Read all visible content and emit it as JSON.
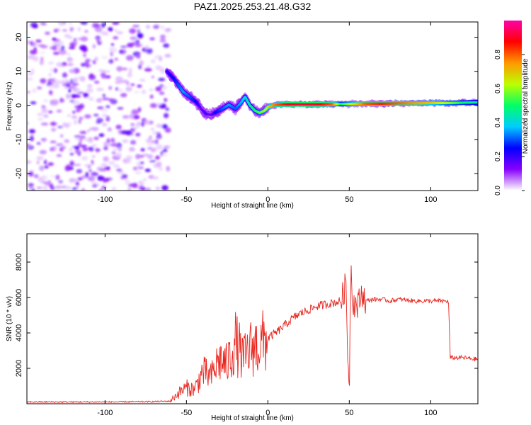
{
  "title": "PAZ1.2025.253.21.48.G32",
  "chart_data": [
    {
      "type": "heatmap",
      "name": "spectrogram",
      "xlabel": "Height of straight line (km)",
      "ylabel": "Frequency (Hz)",
      "xlim": [
        -148,
        129
      ],
      "ylim": [
        -25,
        24.5
      ],
      "xticks": [
        -100,
        -50,
        0,
        50,
        100
      ],
      "yticks": [
        20,
        10,
        0,
        -10,
        -20
      ],
      "xtick_labels": [
        "-100",
        "-50",
        "0",
        "50",
        "100"
      ],
      "ytick_labels": [
        "20",
        "10",
        "0",
        "-10",
        "-20"
      ],
      "noise_region_km": [
        -148,
        -61
      ],
      "ridge": {
        "x": [
          -62,
          -58,
          -55,
          -52,
          -48,
          -44,
          -41,
          -38,
          -35,
          -32,
          -28,
          -24,
          -20,
          -17,
          -14,
          -11,
          -8,
          -5,
          -2,
          0,
          3,
          6,
          10,
          15,
          20,
          30,
          40,
          45,
          50,
          55,
          60,
          70,
          80,
          90,
          100,
          110,
          120,
          129
        ],
        "freq": [
          10,
          8,
          6,
          4,
          2.5,
          1,
          -1,
          -2.5,
          -2.8,
          -2,
          -1,
          0.2,
          -1,
          0.5,
          2.5,
          0,
          -1.5,
          -2.2,
          -1.5,
          -0.5,
          0,
          0.2,
          0.3,
          0.3,
          0.3,
          0.3,
          0.4,
          0.4,
          0.4,
          0.5,
          0.5,
          0.5,
          0.6,
          0.6,
          0.7,
          0.7,
          0.8,
          0.9
        ],
        "amplitude": [
          0.2,
          0.25,
          0.3,
          0.35,
          0.3,
          0.25,
          0.15,
          0.2,
          0.15,
          0.25,
          0.3,
          0.35,
          0.3,
          0.35,
          0.4,
          0.45,
          0.5,
          0.55,
          0.6,
          0.65,
          0.75,
          0.8,
          0.85,
          0.9,
          0.92,
          0.9,
          0.8,
          0.5,
          0.6,
          0.7,
          0.8,
          0.85,
          0.8,
          0.75,
          0.7,
          0.6,
          0.5,
          0.45
        ]
      },
      "colorbar": {
        "label": "Normalized spectral amplitude",
        "range": [
          0,
          1
        ],
        "ticks": [
          0.0,
          0.2,
          0.4,
          0.6,
          0.8
        ],
        "tick_labels": [
          "0.0",
          "0.2",
          "0.4",
          "0.6",
          "0.8"
        ],
        "colormap": [
          "#ffffff",
          "#8800ff",
          "#0000ff",
          "#00ccff",
          "#00ff66",
          "#bbff00",
          "#ff9900",
          "#ff0000",
          "#ff00aa"
        ]
      }
    },
    {
      "type": "line",
      "name": "snr",
      "xlabel": "Height of straight line (km)",
      "ylabel": "SNR (10 * v/v)",
      "xlim": [
        -148,
        129
      ],
      "ylim": [
        0,
        9600
      ],
      "xticks": [
        -100,
        -50,
        0,
        50,
        100
      ],
      "yticks": [
        2000,
        4000,
        6000,
        8000
      ],
      "xtick_labels": [
        "-100",
        "-50",
        "0",
        "50",
        "100"
      ],
      "ytick_labels": [
        "2000",
        "4000",
        "6000",
        "8000"
      ],
      "color": "#e8251e",
      "series": {
        "x": [
          -148,
          -100,
          -70,
          -60,
          -55,
          -50,
          -45,
          -40,
          -35,
          -30,
          -25,
          -20,
          -15,
          -10,
          -5,
          0,
          5,
          10,
          15,
          20,
          25,
          30,
          35,
          40,
          45,
          48,
          49,
          50,
          51,
          52,
          55,
          58,
          60,
          65,
          70,
          75,
          80,
          90,
          100,
          110,
          111,
          112,
          115,
          120,
          129
        ],
        "y": [
          100,
          100,
          120,
          150,
          600,
          900,
          800,
          1800,
          1500,
          2500,
          2200,
          3500,
          2500,
          3200,
          3300,
          3700,
          4000,
          4400,
          4800,
          5100,
          5300,
          5500,
          5600,
          5700,
          5800,
          6800,
          3000,
          1000,
          8000,
          5800,
          5500,
          6300,
          5800,
          5900,
          5900,
          5800,
          5900,
          5800,
          5800,
          5800,
          5700,
          2600,
          2600,
          2600,
          2500
        ]
      }
    }
  ]
}
